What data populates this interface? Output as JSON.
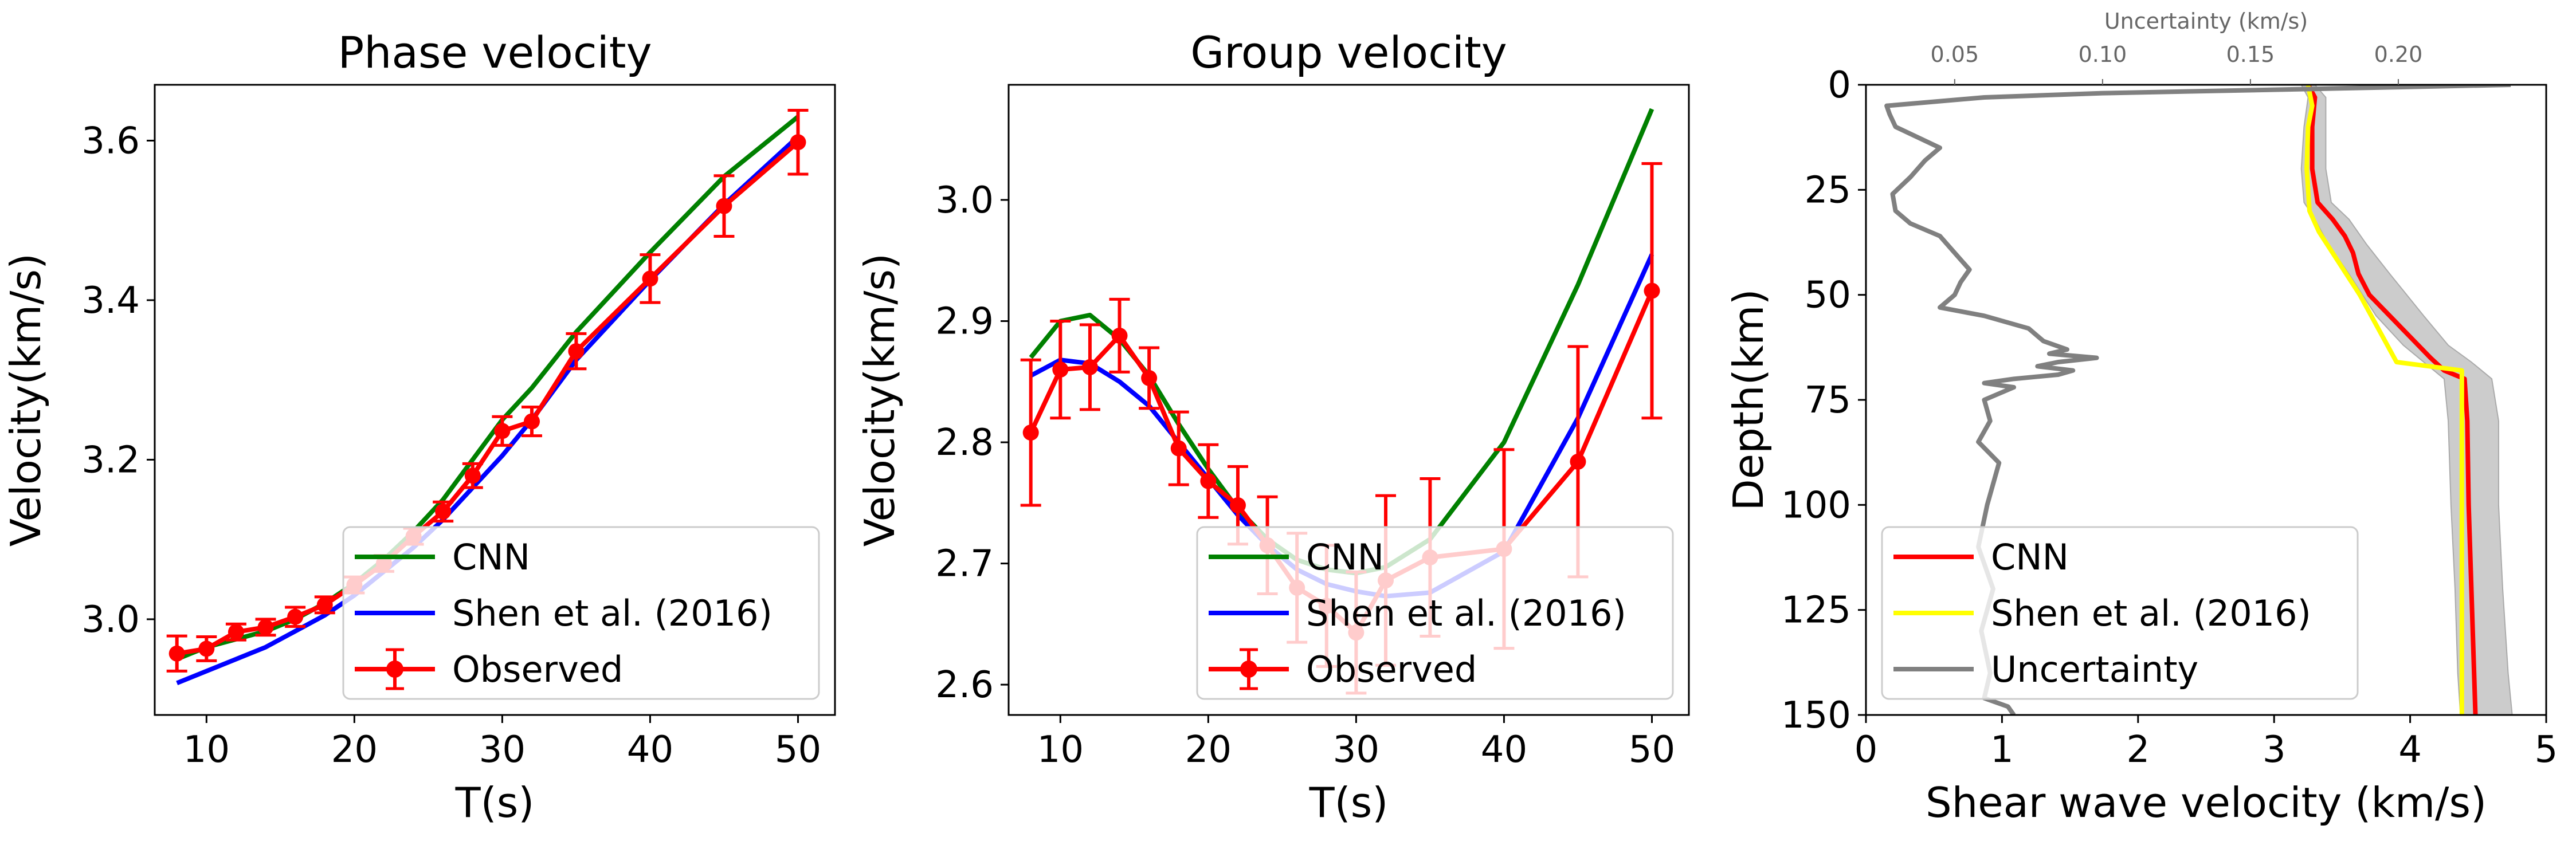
{
  "chart_data": [
    {
      "type": "line",
      "title": "Phase velocity",
      "xlabel": "T(s)",
      "ylabel": "Velocity(km/s)",
      "xlim": [
        6.5,
        52.5
      ],
      "ylim": [
        2.88,
        3.67
      ],
      "xticks": [
        10,
        20,
        30,
        40,
        50
      ],
      "yticks": [
        3.0,
        3.2,
        3.4,
        3.6
      ],
      "ytick_labels": [
        "3.0",
        "3.2",
        "3.4",
        "3.6"
      ],
      "grid": false,
      "legend_position": "lower-right",
      "series": [
        {
          "name": "CNN",
          "kind": "line",
          "color": "#008000",
          "x": [
            8,
            10,
            12,
            14,
            16,
            18,
            20,
            22,
            24,
            26,
            28,
            30,
            32,
            35,
            40,
            45,
            50
          ],
          "y": [
            2.95,
            2.965,
            2.975,
            2.985,
            3.0,
            3.02,
            3.045,
            3.075,
            3.11,
            3.15,
            3.2,
            3.25,
            3.29,
            3.36,
            3.46,
            3.555,
            3.63
          ]
        },
        {
          "name": "Shen et al. (2016)",
          "kind": "line",
          "color": "#0000ff",
          "x": [
            8,
            10,
            12,
            14,
            16,
            18,
            20,
            22,
            24,
            26,
            28,
            30,
            32,
            35,
            40,
            45,
            50
          ],
          "y": [
            2.92,
            2.935,
            2.95,
            2.965,
            2.985,
            3.005,
            3.03,
            3.06,
            3.09,
            3.125,
            3.165,
            3.205,
            3.25,
            3.325,
            3.425,
            3.52,
            3.605
          ]
        },
        {
          "name": "Observed",
          "kind": "errorbar",
          "color": "#ff0000",
          "x": [
            8,
            10,
            12,
            14,
            16,
            18,
            20,
            22,
            24,
            26,
            28,
            30,
            32,
            35,
            40,
            45,
            50
          ],
          "y": [
            2.957,
            2.963,
            2.984,
            2.99,
            3.003,
            3.018,
            3.043,
            3.07,
            3.104,
            3.135,
            3.18,
            3.236,
            3.248,
            3.336,
            3.427,
            3.518,
            3.598
          ],
          "err": [
            0.022,
            0.015,
            0.01,
            0.01,
            0.012,
            0.01,
            0.01,
            0.01,
            0.01,
            0.012,
            0.015,
            0.018,
            0.018,
            0.022,
            0.03,
            0.038,
            0.04
          ]
        }
      ]
    },
    {
      "type": "line",
      "title": "Group velocity",
      "xlabel": "T(s)",
      "ylabel": "Velocity(km/s)",
      "xlim": [
        6.5,
        52.5
      ],
      "ylim": [
        2.575,
        3.095
      ],
      "xticks": [
        10,
        20,
        30,
        40,
        50
      ],
      "yticks": [
        2.6,
        2.7,
        2.8,
        2.9,
        3.0
      ],
      "ytick_labels": [
        "2.6",
        "2.7",
        "2.8",
        "2.9",
        "3.0"
      ],
      "grid": false,
      "legend_position": "lower-right",
      "series": [
        {
          "name": "CNN",
          "kind": "line",
          "color": "#008000",
          "x": [
            8,
            10,
            12,
            14,
            16,
            18,
            20,
            22,
            24,
            26,
            28,
            30,
            32,
            35,
            40,
            45,
            50
          ],
          "y": [
            2.87,
            2.9,
            2.905,
            2.885,
            2.855,
            2.815,
            2.778,
            2.745,
            2.72,
            2.703,
            2.695,
            2.692,
            2.697,
            2.72,
            2.8,
            2.93,
            3.075
          ]
        },
        {
          "name": "Shen et al. (2016)",
          "kind": "line",
          "color": "#0000ff",
          "x": [
            8,
            10,
            12,
            14,
            16,
            18,
            20,
            22,
            24,
            26,
            28,
            30,
            32,
            35,
            40,
            45,
            50
          ],
          "y": [
            2.855,
            2.868,
            2.865,
            2.85,
            2.83,
            2.8,
            2.77,
            2.74,
            2.715,
            2.695,
            2.683,
            2.677,
            2.673,
            2.676,
            2.71,
            2.82,
            2.955
          ]
        },
        {
          "name": "Observed",
          "kind": "errorbar",
          "color": "#ff0000",
          "x": [
            8,
            10,
            12,
            14,
            16,
            18,
            20,
            22,
            24,
            26,
            28,
            30,
            32,
            35,
            40,
            45,
            50
          ],
          "y": [
            2.808,
            2.86,
            2.862,
            2.888,
            2.853,
            2.795,
            2.768,
            2.748,
            2.715,
            2.68,
            2.665,
            2.643,
            2.686,
            2.705,
            2.712,
            2.784,
            2.925
          ],
          "err": [
            0.06,
            0.04,
            0.035,
            0.03,
            0.025,
            0.03,
            0.03,
            0.032,
            0.04,
            0.045,
            0.05,
            0.05,
            0.07,
            0.065,
            0.082,
            0.095,
            0.105
          ]
        }
      ]
    },
    {
      "type": "line",
      "xlabel": "Shear wave velocity (km/s)",
      "ylabel": "Depth(km)",
      "secondary_xlabel": "Uncertainty (km/s)",
      "xlim": [
        0,
        5
      ],
      "ylim": [
        150,
        0
      ],
      "xticks": [
        0,
        1,
        2,
        3,
        4,
        5
      ],
      "yticks": [
        0,
        25,
        50,
        75,
        100,
        125,
        150
      ],
      "secondary_xlim": [
        0.02,
        0.25
      ],
      "secondary_xticks": [
        0.05,
        0.1,
        0.15,
        0.2
      ],
      "secondary_xtick_labels": [
        "0.05",
        "0.10",
        "0.15",
        "0.20"
      ],
      "grid": false,
      "legend_position": "lower-left",
      "band": {
        "color": "#cccccc",
        "depth": [
          0,
          3,
          10,
          20,
          28,
          32,
          38,
          45,
          55,
          62,
          66,
          70,
          80,
          100,
          120,
          140,
          150
        ],
        "min": [
          3.2,
          3.25,
          3.22,
          3.2,
          3.22,
          3.3,
          3.4,
          3.55,
          3.75,
          3.95,
          4.1,
          4.25,
          4.28,
          4.3,
          4.33,
          4.35,
          4.37
        ],
        "max": [
          3.3,
          3.38,
          3.38,
          3.38,
          3.42,
          3.55,
          3.68,
          3.85,
          4.1,
          4.28,
          4.45,
          4.6,
          4.65,
          4.65,
          4.68,
          4.72,
          4.75
        ]
      },
      "series": [
        {
          "name": "CNN",
          "kind": "line",
          "color": "#ff0000",
          "axis": "velocity",
          "depth": [
            0,
            3,
            10,
            20,
            28,
            32,
            36,
            40,
            45,
            50,
            55,
            60,
            65,
            68,
            70,
            80,
            100,
            120,
            140,
            150
          ],
          "value": [
            3.25,
            3.3,
            3.28,
            3.28,
            3.32,
            3.43,
            3.52,
            3.58,
            3.62,
            3.7,
            3.85,
            4.0,
            4.15,
            4.25,
            4.4,
            4.42,
            4.43,
            4.45,
            4.47,
            4.48
          ]
        },
        {
          "name": "Shen et al. (2016)",
          "kind": "line",
          "color": "#ffff00",
          "axis": "velocity",
          "depth": [
            0,
            5,
            10,
            20,
            30,
            35,
            50,
            66,
            68,
            150
          ],
          "value": [
            3.25,
            3.28,
            3.25,
            3.24,
            3.26,
            3.33,
            3.63,
            3.9,
            4.38,
            4.38
          ]
        },
        {
          "name": "Uncertainty",
          "kind": "line",
          "color": "#808080",
          "axis": "uncertainty",
          "depth": [
            0,
            1,
            2,
            3,
            5,
            7,
            10,
            15,
            18,
            22,
            26,
            30,
            33,
            36,
            40,
            44,
            47,
            50,
            53,
            55,
            58,
            61,
            63,
            64,
            65,
            66,
            67,
            68,
            69,
            70,
            71,
            72,
            75,
            80,
            85,
            90,
            100,
            110,
            120,
            130,
            140,
            146,
            148,
            150
          ],
          "value": [
            0.238,
            0.17,
            0.1,
            0.06,
            0.027,
            0.028,
            0.03,
            0.045,
            0.04,
            0.035,
            0.029,
            0.03,
            0.035,
            0.045,
            0.05,
            0.055,
            0.052,
            0.05,
            0.045,
            0.06,
            0.075,
            0.08,
            0.088,
            0.082,
            0.098,
            0.085,
            0.078,
            0.09,
            0.085,
            0.07,
            0.06,
            0.07,
            0.06,
            0.062,
            0.058,
            0.065,
            0.061,
            0.058,
            0.063,
            0.059,
            0.062,
            0.06,
            0.068,
            0.07
          ]
        }
      ]
    }
  ]
}
